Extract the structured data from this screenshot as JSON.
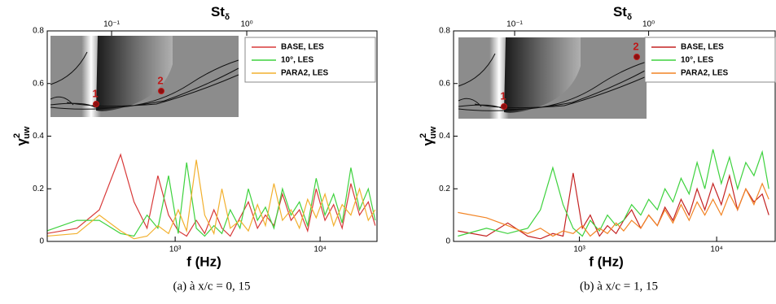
{
  "chart_data": [
    {
      "type": "line",
      "xscale": "log",
      "xlabel": "f (Hz)",
      "x2label": "St",
      "x2label_sub": "δ",
      "ylabel": "γ",
      "ylabel_sup": "2",
      "ylabel_sub": "uw",
      "caption": "(a) à x/c = 0, 15",
      "x": [
        130,
        210,
        300,
        420,
        520,
        640,
        760,
        900,
        1050,
        1200,
        1400,
        1600,
        1850,
        2100,
        2400,
        2800,
        3200,
        3700,
        4200,
        4800,
        5500,
        6300,
        7200,
        8200,
        9400,
        10800,
        12400,
        14200,
        16300,
        18700,
        21500,
        24000
      ],
      "series": [
        {
          "name": "BASE, LES",
          "color": "#d83a3a",
          "values": [
            0.03,
            0.05,
            0.12,
            0.33,
            0.15,
            0.05,
            0.25,
            0.1,
            0.04,
            0.02,
            0.08,
            0.03,
            0.12,
            0.05,
            0.02,
            0.09,
            0.15,
            0.05,
            0.1,
            0.06,
            0.18,
            0.08,
            0.12,
            0.04,
            0.2,
            0.08,
            0.14,
            0.05,
            0.22,
            0.1,
            0.15,
            0.06
          ]
        },
        {
          "name": "10°, LES",
          "color": "#3ed23e",
          "values": [
            0.04,
            0.08,
            0.08,
            0.03,
            0.02,
            0.1,
            0.05,
            0.25,
            0.03,
            0.3,
            0.05,
            0.02,
            0.06,
            0.03,
            0.12,
            0.05,
            0.2,
            0.08,
            0.13,
            0.05,
            0.2,
            0.1,
            0.15,
            0.06,
            0.24,
            0.1,
            0.18,
            0.07,
            0.28,
            0.12,
            0.2,
            0.08
          ]
        },
        {
          "name": "PARA2, LES",
          "color": "#f2b02e",
          "values": [
            0.02,
            0.03,
            0.1,
            0.04,
            0.01,
            0.02,
            0.06,
            0.03,
            0.12,
            0.04,
            0.31,
            0.1,
            0.03,
            0.2,
            0.05,
            0.08,
            0.04,
            0.14,
            0.06,
            0.22,
            0.08,
            0.12,
            0.05,
            0.16,
            0.09,
            0.18,
            0.06,
            0.14,
            0.1,
            0.2,
            0.08,
            0.12
          ]
        }
      ],
      "xlim": [
        131,
        24700
      ],
      "xticks": [
        {
          "value": 1000,
          "label": "10³"
        },
        {
          "value": 10000,
          "label": "10⁴"
        }
      ],
      "x2lim": [
        0.0334,
        9.2
      ],
      "x2ticks": [
        {
          "value": 0.1,
          "label": "10⁻¹"
        },
        {
          "value": 1,
          "label": "10⁰"
        }
      ],
      "ylim": [
        0,
        0.8
      ],
      "yticks": [
        0,
        0.2,
        0.4,
        0.6,
        0.8
      ],
      "annotations": [
        "1",
        "2"
      ]
    },
    {
      "type": "line",
      "xscale": "log",
      "xlabel": "f (Hz)",
      "x2label": "St",
      "x2label_sub": "δ",
      "ylabel": "γ",
      "ylabel_sup": "2",
      "ylabel_sub": "uw",
      "caption": "(b) à x/c = 1, 15",
      "x": [
        130,
        210,
        300,
        420,
        520,
        640,
        760,
        900,
        1050,
        1200,
        1400,
        1600,
        1850,
        2100,
        2400,
        2800,
        3200,
        3700,
        4200,
        4800,
        5500,
        6300,
        7200,
        8200,
        9400,
        10800,
        12400,
        14200,
        16300,
        18700,
        21500,
        24000
      ],
      "series": [
        {
          "name": "BASE, LES",
          "color": "#c42222",
          "values": [
            0.04,
            0.02,
            0.07,
            0.02,
            0.01,
            0.03,
            0.02,
            0.26,
            0.05,
            0.1,
            0.02,
            0.06,
            0.03,
            0.08,
            0.12,
            0.05,
            0.1,
            0.06,
            0.13,
            0.08,
            0.16,
            0.1,
            0.2,
            0.12,
            0.22,
            0.14,
            0.25,
            0.12,
            0.2,
            0.15,
            0.18,
            0.1
          ]
        },
        {
          "name": "10°, LES",
          "color": "#3ed23e",
          "values": [
            0.02,
            0.05,
            0.03,
            0.05,
            0.12,
            0.28,
            0.14,
            0.05,
            0.02,
            0.08,
            0.04,
            0.1,
            0.06,
            0.08,
            0.14,
            0.1,
            0.16,
            0.12,
            0.2,
            0.15,
            0.24,
            0.18,
            0.3,
            0.2,
            0.35,
            0.22,
            0.32,
            0.2,
            0.3,
            0.25,
            0.34,
            0.2
          ]
        },
        {
          "name": "PARA2, LES",
          "color": "#f28424",
          "values": [
            0.11,
            0.09,
            0.06,
            0.03,
            0.05,
            0.02,
            0.04,
            0.03,
            0.06,
            0.02,
            0.05,
            0.03,
            0.07,
            0.04,
            0.08,
            0.05,
            0.1,
            0.06,
            0.12,
            0.07,
            0.14,
            0.08,
            0.15,
            0.1,
            0.16,
            0.1,
            0.18,
            0.12,
            0.2,
            0.14,
            0.22,
            0.16
          ]
        }
      ],
      "xlim": [
        121,
        26700
      ],
      "xticks": [
        {
          "value": 1000,
          "label": "10³"
        },
        {
          "value": 10000,
          "label": "10⁴"
        }
      ],
      "x2lim": [
        0.035,
        8.8
      ],
      "x2ticks": [
        {
          "value": 0.1,
          "label": "10⁻¹"
        },
        {
          "value": 1,
          "label": "10⁰"
        }
      ],
      "ylim": [
        0,
        0.8
      ],
      "yticks": [
        0,
        0.2,
        0.4,
        0.6,
        0.8
      ],
      "annotations": [
        "1",
        "2"
      ]
    }
  ]
}
